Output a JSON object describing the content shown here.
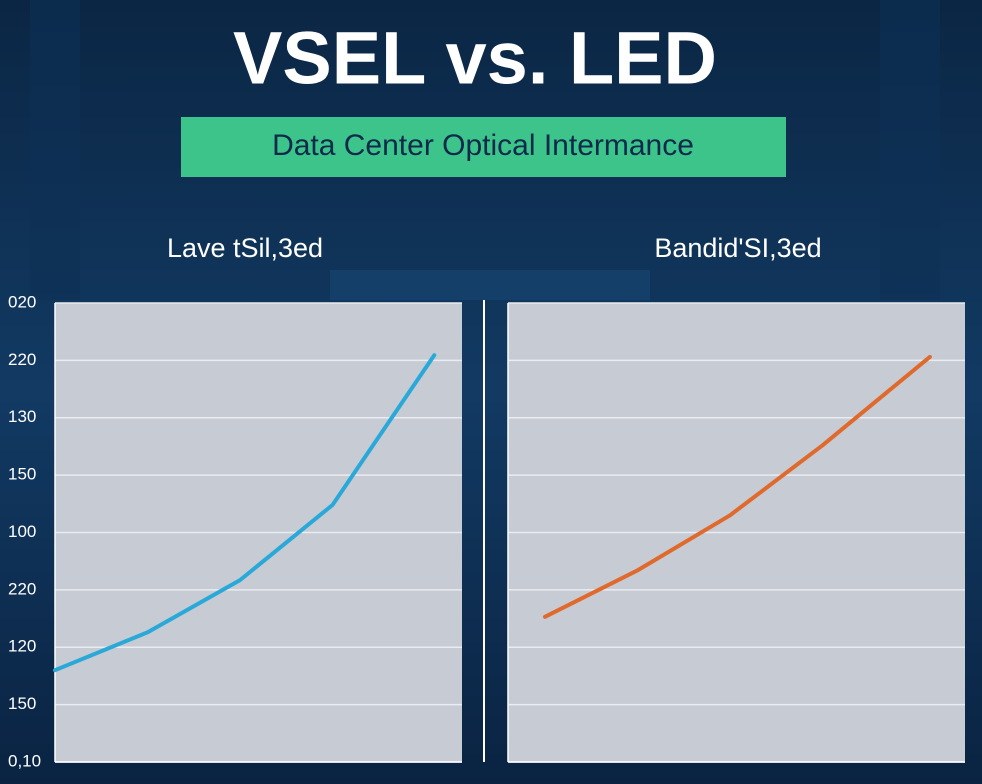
{
  "title": "VSEL vs. LED",
  "subtitle": "Data Center Optical Intermance",
  "chart_data": [
    {
      "type": "line",
      "title": "Lave tSil,3ed",
      "x": [
        0,
        1,
        2,
        3,
        4.1
      ],
      "values": [
        1.6,
        2.26,
        3.17,
        4.48,
        7.09
      ],
      "color": "#2aa9d9",
      "xlim": [
        0,
        4.4
      ],
      "ylim": [
        0,
        8
      ],
      "yticks": [
        {
          "value": 0,
          "label": "0,10"
        },
        {
          "value": 1,
          "label": "150"
        },
        {
          "value": 2,
          "label": "120"
        },
        {
          "value": 3,
          "label": "220"
        },
        {
          "value": 4,
          "label": "100"
        },
        {
          "value": 5,
          "label": "150"
        },
        {
          "value": 6,
          "label": "130"
        },
        {
          "value": 7,
          "label": "220"
        },
        {
          "value": 8,
          "label": "020"
        }
      ],
      "grid": true
    },
    {
      "type": "line",
      "title": "Bandid'SI,3ed",
      "x": [
        0,
        1,
        2,
        3,
        4.16
      ],
      "values": [
        2.53,
        3.34,
        4.3,
        5.52,
        7.06
      ],
      "color": "#e0692c",
      "xlim": [
        -0.4,
        4.54
      ],
      "ylim": [
        0,
        8
      ],
      "grid": true
    }
  ]
}
